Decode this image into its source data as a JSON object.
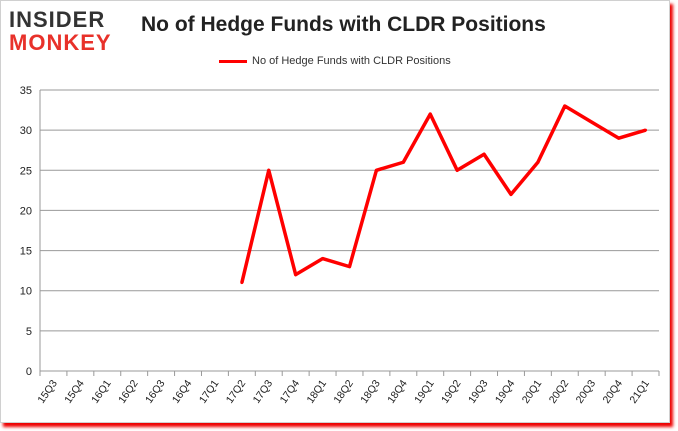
{
  "logo": {
    "line1": "INSIDER",
    "line2": "MONKEY"
  },
  "chart_data": {
    "type": "line",
    "title": "No of Hedge Funds with CLDR Positions",
    "legend_position": "top",
    "grid": true,
    "ylim": [
      0,
      35
    ],
    "yticks": [
      0,
      5,
      10,
      15,
      20,
      25,
      30,
      35
    ],
    "categories": [
      "15Q3",
      "15Q4",
      "16Q1",
      "16Q2",
      "16Q3",
      "16Q4",
      "17Q1",
      "17Q2",
      "17Q3",
      "17Q4",
      "18Q1",
      "18Q2",
      "18Q3",
      "18Q4",
      "19Q1",
      "19Q2",
      "19Q3",
      "19Q4",
      "20Q1",
      "20Q2",
      "20Q3",
      "20Q4",
      "21Q1"
    ],
    "series": [
      {
        "name": "No of Hedge Funds with CLDR Positions",
        "color": "#ff0000",
        "values": [
          null,
          null,
          null,
          null,
          null,
          null,
          null,
          11,
          25,
          12,
          14,
          13,
          25,
          26,
          32,
          25,
          27,
          22,
          26,
          33,
          31,
          29,
          30
        ]
      }
    ]
  }
}
